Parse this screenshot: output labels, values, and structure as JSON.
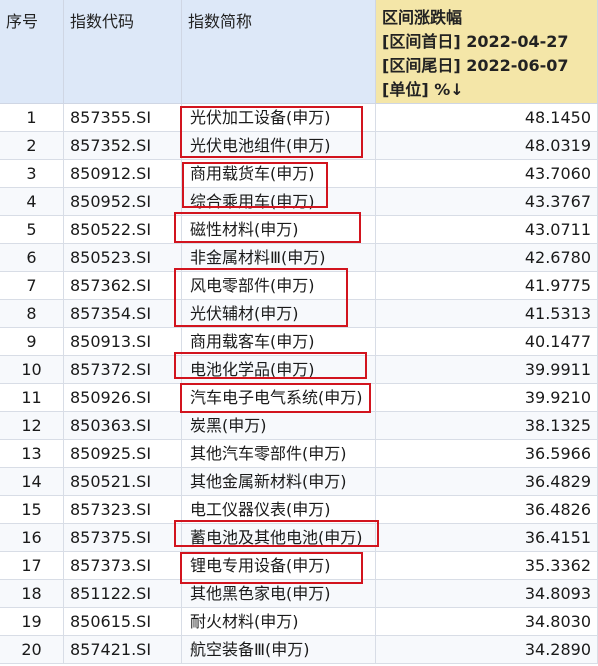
{
  "table": {
    "headers": {
      "seq": "序号",
      "code": "指数代码",
      "name": "指数简称",
      "value_lines": [
        "区间涨跌幅",
        "[区间首日] 2022-04-27",
        "[区间尾日] 2022-06-07",
        "[单位] %↓"
      ]
    },
    "rows": [
      {
        "seq": "1",
        "code": "857355.SI",
        "name": "光伏加工设备(申万)",
        "value": "48.1450"
      },
      {
        "seq": "2",
        "code": "857352.SI",
        "name": "光伏电池组件(申万)",
        "value": "48.0319"
      },
      {
        "seq": "3",
        "code": "850912.SI",
        "name": "商用载货车(申万)",
        "value": "43.7060"
      },
      {
        "seq": "4",
        "code": "850952.SI",
        "name": "综合乘用车(申万)",
        "value": "43.3767"
      },
      {
        "seq": "5",
        "code": "850522.SI",
        "name": "磁性材料(申万)",
        "value": "43.0711"
      },
      {
        "seq": "6",
        "code": "850523.SI",
        "name": "非金属材料Ⅲ(申万)",
        "value": "42.6780"
      },
      {
        "seq": "7",
        "code": "857362.SI",
        "name": "风电零部件(申万)",
        "value": "41.9775"
      },
      {
        "seq": "8",
        "code": "857354.SI",
        "name": "光伏辅材(申万)",
        "value": "41.5313"
      },
      {
        "seq": "9",
        "code": "850913.SI",
        "name": "商用载客车(申万)",
        "value": "40.1477"
      },
      {
        "seq": "10",
        "code": "857372.SI",
        "name": "电池化学品(申万)",
        "value": "39.9911"
      },
      {
        "seq": "11",
        "code": "850926.SI",
        "name": "汽车电子电气系统(申万)",
        "value": "39.9210"
      },
      {
        "seq": "12",
        "code": "850363.SI",
        "name": "炭黑(申万)",
        "value": "38.1325"
      },
      {
        "seq": "13",
        "code": "850925.SI",
        "name": "其他汽车零部件(申万)",
        "value": "36.5966"
      },
      {
        "seq": "14",
        "code": "850521.SI",
        "name": "其他金属新材料(申万)",
        "value": "36.4829"
      },
      {
        "seq": "15",
        "code": "857323.SI",
        "name": "电工仪器仪表(申万)",
        "value": "36.4826"
      },
      {
        "seq": "16",
        "code": "857375.SI",
        "name": "蓄电池及其他电池(申万)",
        "value": "36.4151"
      },
      {
        "seq": "17",
        "code": "857373.SI",
        "name": "锂电专用设备(申万)",
        "value": "35.3362"
      },
      {
        "seq": "18",
        "code": "851122.SI",
        "name": "其他黑色家电(申万)",
        "value": "34.8093"
      },
      {
        "seq": "19",
        "code": "850615.SI",
        "name": "耐火材料(申万)",
        "value": "34.8030"
      },
      {
        "seq": "20",
        "code": "857421.SI",
        "name": "航空装备Ⅲ(申万)",
        "value": "34.2890"
      }
    ]
  },
  "highlight_color": "#d2141e"
}
